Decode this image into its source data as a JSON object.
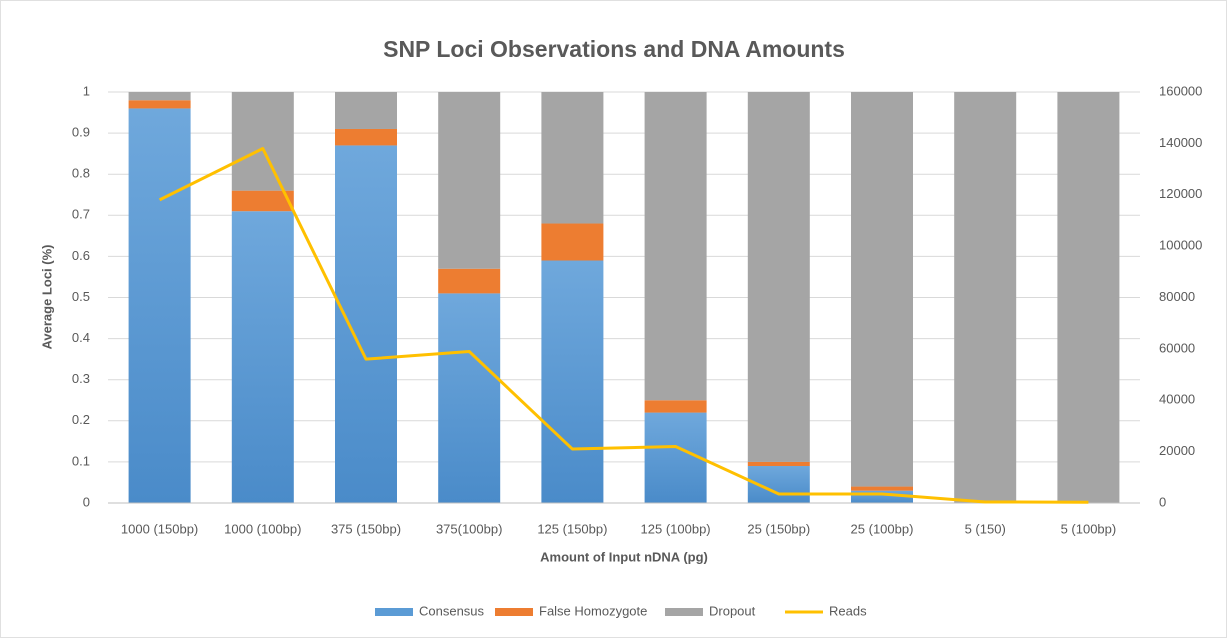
{
  "chart_data": {
    "type": "stacked_bar_line",
    "title": "SNP Loci Observations and DNA Amounts",
    "x_label": "Amount of Input nDNA (pg)",
    "y_label": "Average Loci (%)",
    "categories": [
      "1000 (150bp)",
      "1000 (100bp)",
      "375 (150bp)",
      "375(100bp)",
      "125 (150bp)",
      "125 (100bp)",
      "25 (150bp)",
      "25 (100bp)",
      "5 (150)",
      "5 (100bp)"
    ],
    "series": [
      {
        "name": "Consensus",
        "color": "#5b9bd5",
        "values": [
          0.96,
          0.71,
          0.87,
          0.51,
          0.59,
          0.22,
          0.09,
          0.03,
          0,
          0
        ]
      },
      {
        "name": "False Homozygote",
        "color": "#ed7d31",
        "values": [
          0.02,
          0.05,
          0.04,
          0.06,
          0.09,
          0.03,
          0.01,
          0.01,
          0,
          0
        ]
      },
      {
        "name": "Dropout",
        "color": "#a5a5a5",
        "values": [
          0.02,
          0.24,
          0.09,
          0.43,
          0.32,
          0.75,
          0.9,
          0.96,
          1,
          1
        ]
      },
      {
        "name": "Reads",
        "color": "#ffc000",
        "axis": "y2",
        "line": true,
        "values": [
          118000,
          138000,
          56000,
          59000,
          21000,
          22000,
          3500,
          3500,
          400,
          300
        ]
      }
    ],
    "ylim": [
      0,
      1
    ],
    "yticks": [
      0,
      0.1,
      0.2,
      0.3,
      0.4,
      0.5,
      0.6,
      0.7,
      0.8,
      0.9,
      1
    ],
    "y2lim": [
      0,
      160000
    ],
    "y2ticks": [
      0,
      20000,
      40000,
      60000,
      80000,
      100000,
      120000,
      140000,
      160000
    ],
    "grid": true,
    "legend": "bottom"
  }
}
